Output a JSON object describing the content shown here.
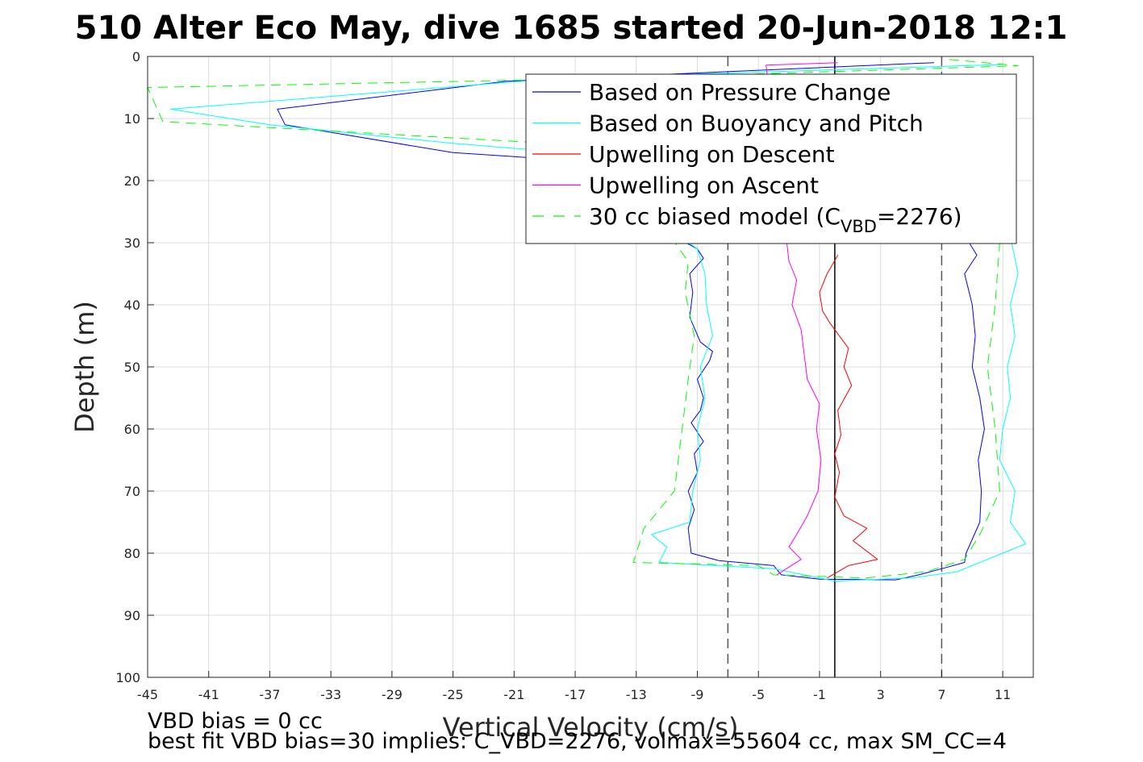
{
  "chart_data": {
    "type": "line",
    "title": "510 Alter Eco May, dive 1685 started 20-Jun-2018 12:1",
    "xlabel": "Vertical Velocity (cm/s)",
    "ylabel": "Depth (m)",
    "xlim": [
      -45,
      13
    ],
    "ylim": [
      0,
      100
    ],
    "y_reversed": true,
    "grid": true,
    "x_ticks": [
      -45,
      -41,
      -37,
      -33,
      -29,
      -25,
      -21,
      -17,
      -13,
      -9,
      -5,
      -1,
      3,
      7,
      11
    ],
    "y_ticks": [
      0,
      10,
      20,
      30,
      40,
      50,
      60,
      70,
      80,
      90,
      100
    ],
    "x_tick_labels": [
      "-45",
      "-41",
      "-37",
      "-33",
      "-29",
      "-25",
      "-21",
      "-17",
      "-13",
      "-9",
      "-5",
      "-1",
      "3",
      "7",
      "11"
    ],
    "y_tick_labels": [
      "0",
      "10",
      "20",
      "30",
      "40",
      "50",
      "60",
      "70",
      "80",
      "90",
      "100"
    ],
    "legend_position": "top-right",
    "legend": [
      {
        "label": "Based on Pressure Change",
        "color": "#0000ff",
        "style": "solid"
      },
      {
        "label": "Based on Buoyancy and Pitch",
        "color": "#00ffff",
        "style": "solid"
      },
      {
        "label": "Upwelling on Descent",
        "color": "#ff0000",
        "style": "solid"
      },
      {
        "label": "Upwelling on Ascent",
        "color": "#ff00ff",
        "style": "solid"
      },
      {
        "label": "30 cc biased model (C",
        "sub": "VBD",
        "suffix": "=2276)",
        "color": "#00ff00",
        "style": "dashed"
      }
    ],
    "reference_lines": [
      {
        "x": -7,
        "style": "dashed",
        "color": "#555555"
      },
      {
        "x": 7,
        "style": "dashed",
        "color": "#555555"
      },
      {
        "x": 0,
        "style": "solid",
        "color": "#000000"
      }
    ],
    "series": [
      {
        "color": "#0000ff",
        "style": "solid",
        "points": [
          [
            6.5,
            1
          ],
          [
            -21.5,
            4
          ],
          [
            -36.5,
            8.5
          ],
          [
            -36,
            11
          ],
          [
            -25,
            15.5
          ],
          [
            -20,
            16.3
          ],
          [
            -9,
            31
          ],
          [
            -8.6,
            32.5
          ],
          [
            -9.5,
            35
          ],
          [
            -9.3,
            38
          ],
          [
            -9.5,
            42
          ],
          [
            -8.8,
            46
          ],
          [
            -8,
            47.5
          ],
          [
            -8.2,
            49
          ],
          [
            -9,
            52
          ],
          [
            -8.6,
            55
          ],
          [
            -8.8,
            57
          ],
          [
            -9.4,
            59
          ],
          [
            -8.6,
            62
          ],
          [
            -9.2,
            64
          ],
          [
            -9.0,
            67
          ],
          [
            -9.6,
            70
          ],
          [
            -9.2,
            73
          ],
          [
            -9.6,
            76
          ],
          [
            -9.4,
            80
          ],
          [
            -7.6,
            81.2
          ],
          [
            -4,
            82
          ],
          [
            -3.5,
            83.5
          ],
          [
            -1,
            84.2
          ],
          [
            4,
            84.3
          ],
          [
            5.5,
            83.5
          ],
          [
            7,
            82.5
          ],
          [
            8.5,
            81.5
          ],
          [
            8.6,
            80
          ],
          [
            9.5,
            75
          ],
          [
            9.6,
            70
          ],
          [
            9.4,
            65
          ],
          [
            9.8,
            60
          ],
          [
            9.5,
            55
          ],
          [
            9.0,
            50
          ],
          [
            9.2,
            45
          ],
          [
            9.0,
            40
          ],
          [
            8.5,
            35
          ],
          [
            9.3,
            32
          ],
          [
            8.8,
            30
          ]
        ]
      },
      {
        "color": "#00ffff",
        "style": "solid",
        "points": [
          [
            11,
            1.3
          ],
          [
            -18,
            3.5
          ],
          [
            -43.5,
            8.5
          ],
          [
            -37,
            11
          ],
          [
            -25,
            14
          ],
          [
            -17.5,
            15.5
          ],
          [
            -9,
            31
          ],
          [
            -8.5,
            35
          ],
          [
            -8.4,
            40
          ],
          [
            -8.0,
            45
          ],
          [
            -8.8,
            50
          ],
          [
            -8.5,
            55
          ],
          [
            -9.0,
            60
          ],
          [
            -8.8,
            65
          ],
          [
            -9.3,
            70
          ],
          [
            -9.5,
            75
          ],
          [
            -12,
            77
          ],
          [
            -11,
            79
          ],
          [
            -11.5,
            81.5
          ],
          [
            -4,
            82.5
          ],
          [
            0,
            84.5
          ],
          [
            5,
            84
          ],
          [
            8,
            83
          ],
          [
            9,
            82
          ],
          [
            12.5,
            78.5
          ],
          [
            11.5,
            75
          ],
          [
            11.8,
            70
          ],
          [
            10.8,
            65
          ],
          [
            11.0,
            60
          ],
          [
            11.5,
            55
          ],
          [
            11.3,
            50
          ],
          [
            11.8,
            45
          ],
          [
            11.5,
            40
          ],
          [
            12,
            35
          ],
          [
            11.5,
            29
          ]
        ]
      },
      {
        "color": "#ff0000",
        "style": "solid",
        "points": [
          [
            0.2,
            32
          ],
          [
            -0.5,
            35
          ],
          [
            -1,
            38
          ],
          [
            -0.8,
            41
          ],
          [
            -0.3,
            43
          ],
          [
            0.9,
            47
          ],
          [
            0.6,
            50
          ],
          [
            1.1,
            53
          ],
          [
            0.2,
            57
          ],
          [
            0.4,
            61
          ],
          [
            0.0,
            64
          ],
          [
            0.3,
            67
          ],
          [
            0.0,
            71
          ],
          [
            0.6,
            74
          ],
          [
            2.1,
            76
          ],
          [
            1.2,
            78
          ],
          [
            2.8,
            81
          ],
          [
            0.9,
            82
          ],
          [
            -0.5,
            84
          ]
        ]
      },
      {
        "color": "#ff00ff",
        "style": "solid",
        "points": [
          [
            0.2,
            1
          ],
          [
            -4.5,
            1.4
          ],
          [
            -3,
            33
          ],
          [
            -2.5,
            36
          ],
          [
            -2.8,
            40
          ],
          [
            -2.2,
            44
          ],
          [
            -2.0,
            48
          ],
          [
            -1.8,
            52
          ],
          [
            -1.0,
            56
          ],
          [
            -1.2,
            60
          ],
          [
            -0.9,
            65
          ],
          [
            -1.1,
            70
          ],
          [
            -1.8,
            74
          ],
          [
            -2.5,
            77
          ],
          [
            -3.0,
            79
          ],
          [
            -2.2,
            81
          ],
          [
            -3.8,
            83.5
          ]
        ]
      },
      {
        "color": "#00ff00",
        "style": "dashed",
        "points": [
          [
            7.5,
            0.5
          ],
          [
            12,
            1.5
          ],
          [
            -14,
            3.5
          ],
          [
            -45,
            5
          ],
          [
            -44,
            10.5
          ],
          [
            -15,
            14.5
          ],
          [
            -9.6,
            33
          ],
          [
            -9.8,
            38
          ],
          [
            -9.2,
            45
          ],
          [
            -9.6,
            52
          ],
          [
            -10.0,
            60
          ],
          [
            -10.5,
            70
          ],
          [
            -12.5,
            76
          ],
          [
            -13,
            80
          ],
          [
            -13.2,
            81.5
          ],
          [
            -5,
            82
          ],
          [
            -4,
            83.5
          ],
          [
            2,
            84
          ],
          [
            6,
            83
          ],
          [
            8.5,
            81
          ],
          [
            9.5,
            77
          ],
          [
            10.8,
            70
          ],
          [
            10.5,
            60
          ],
          [
            10.0,
            50
          ],
          [
            10.5,
            40
          ],
          [
            10.8,
            30
          ]
        ]
      }
    ]
  },
  "footnotes": {
    "line1": "VBD bias = 0 cc",
    "line2": "best fit VBD bias=30 implies: C_VBD=2276, volmax=55604 cc, max SM_CC=4"
  }
}
